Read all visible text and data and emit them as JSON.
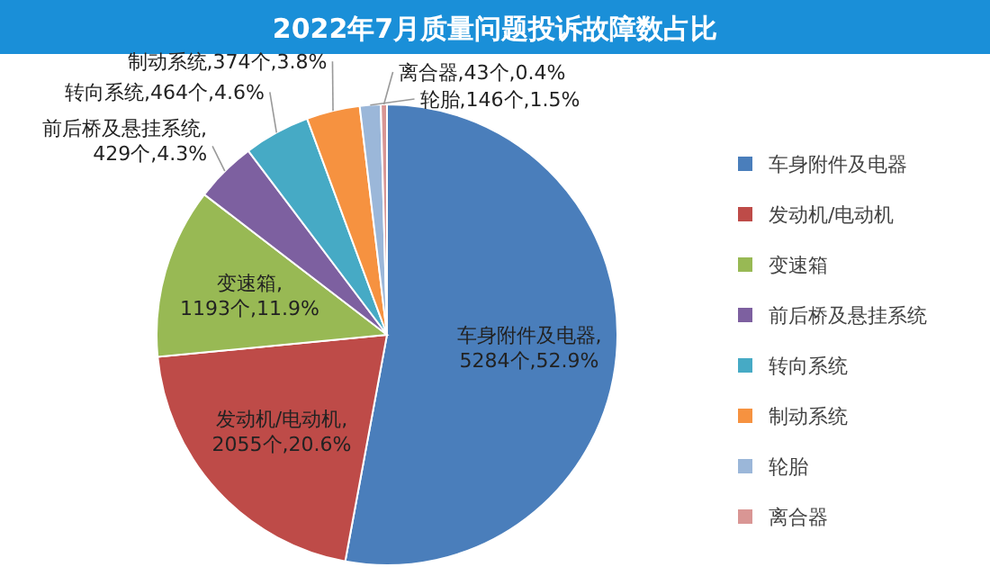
{
  "chart_data": {
    "type": "pie",
    "title": "2022年7月质量问题投诉故障数占比",
    "categories": [
      "车身附件及电器",
      "发动机/电动机",
      "变速箱",
      "前后桥及悬挂系统",
      "转向系统",
      "制动系统",
      "轮胎",
      "离合器"
    ],
    "values": [
      5284,
      2055,
      1193,
      429,
      464,
      374,
      146,
      43
    ],
    "colors": [
      "#4a7ebb",
      "#be4b48",
      "#98b954",
      "#7d60a0",
      "#46aac5",
      "#f69240",
      "#9bb7d9",
      "#d99694"
    ],
    "value_labels": [
      "车身附件及电器,\n5284个,52.9%",
      "发动机/电动机,\n2055个,20.6%",
      "变速箱,\n1193个,11.9%",
      "前后桥及悬挂系统,\n429个,4.3%",
      "转向系统,464个,4.6%",
      "制动系统,374个,3.8%",
      "轮胎,146个,1.5%",
      "离合器,43个,0.4%"
    ],
    "legend": "right"
  }
}
